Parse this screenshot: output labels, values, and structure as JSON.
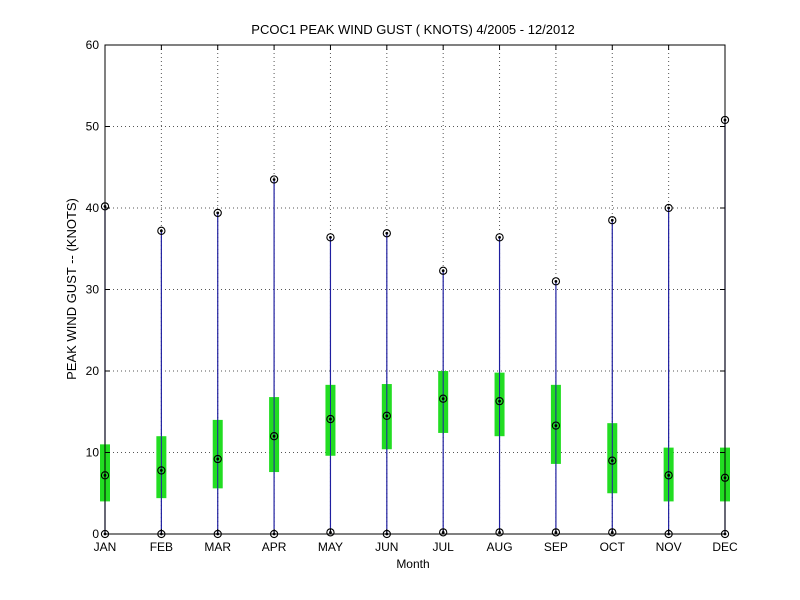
{
  "chart_data": {
    "type": "box",
    "title": "PCOC1  PEAK WIND GUST ( KNOTS) 4/2005 - 12/2012",
    "xlabel": "Month",
    "ylabel": "PEAK WIND GUST -- (KNOTS)",
    "ylim": [
      0,
      60
    ],
    "yticks": [
      0,
      10,
      20,
      30,
      40,
      50,
      60
    ],
    "grid": true,
    "colors": {
      "whisker": "#1f1fa0",
      "box": "#22dd22",
      "marker": "#000000",
      "axis": "#000000",
      "grid": "#555555"
    },
    "categories": [
      "JAN",
      "FEB",
      "MAR",
      "APR",
      "MAY",
      "JUN",
      "JUL",
      "AUG",
      "SEP",
      "OCT",
      "NOV",
      "DEC"
    ],
    "series": [
      {
        "min": [
          0,
          0,
          0,
          0,
          0.2,
          0,
          0.2,
          0.2,
          0.2,
          0.2,
          0,
          0
        ],
        "q1": [
          4,
          4.4,
          5.6,
          7.6,
          9.6,
          10.4,
          12.4,
          12.0,
          8.6,
          5.0,
          4.0,
          4.0
        ],
        "median": [
          7.2,
          7.8,
          9.2,
          12.0,
          14.1,
          14.5,
          16.6,
          16.3,
          13.3,
          9.0,
          7.2,
          6.9
        ],
        "q3": [
          11.0,
          12.0,
          14.0,
          16.8,
          18.3,
          18.4,
          20.0,
          19.8,
          18.3,
          13.6,
          10.6,
          10.6
        ],
        "max": [
          40.2,
          37.2,
          39.4,
          43.5,
          36.4,
          36.9,
          32.3,
          36.4,
          31.0,
          38.5,
          40.0,
          50.8
        ]
      }
    ]
  }
}
